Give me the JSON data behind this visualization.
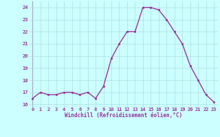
{
  "x": [
    0,
    1,
    2,
    3,
    4,
    5,
    6,
    7,
    8,
    9,
    10,
    11,
    12,
    13,
    14,
    15,
    16,
    17,
    18,
    19,
    20,
    21,
    22,
    23
  ],
  "y": [
    16.5,
    17.0,
    16.8,
    16.8,
    17.0,
    17.0,
    16.8,
    17.0,
    16.5,
    17.5,
    19.8,
    21.0,
    22.0,
    22.0,
    24.0,
    24.0,
    23.8,
    23.0,
    22.0,
    21.0,
    19.2,
    18.0,
    16.8,
    16.2
  ],
  "line_color": "#993399",
  "marker_color": "#993399",
  "bg_color": "#ccffff",
  "grid_color": "#aadddd",
  "xlabel": "Windchill (Refroidissement éolien,°C)",
  "xlabel_color": "#993399",
  "tick_color": "#993399",
  "ylim": [
    15.8,
    24.5
  ],
  "yticks": [
    16,
    17,
    18,
    19,
    20,
    21,
    22,
    23,
    24
  ],
  "xlim": [
    -0.5,
    23.5
  ],
  "xticks": [
    0,
    1,
    2,
    3,
    4,
    5,
    6,
    7,
    8,
    9,
    10,
    11,
    12,
    13,
    14,
    15,
    16,
    17,
    18,
    19,
    20,
    21,
    22,
    23
  ]
}
